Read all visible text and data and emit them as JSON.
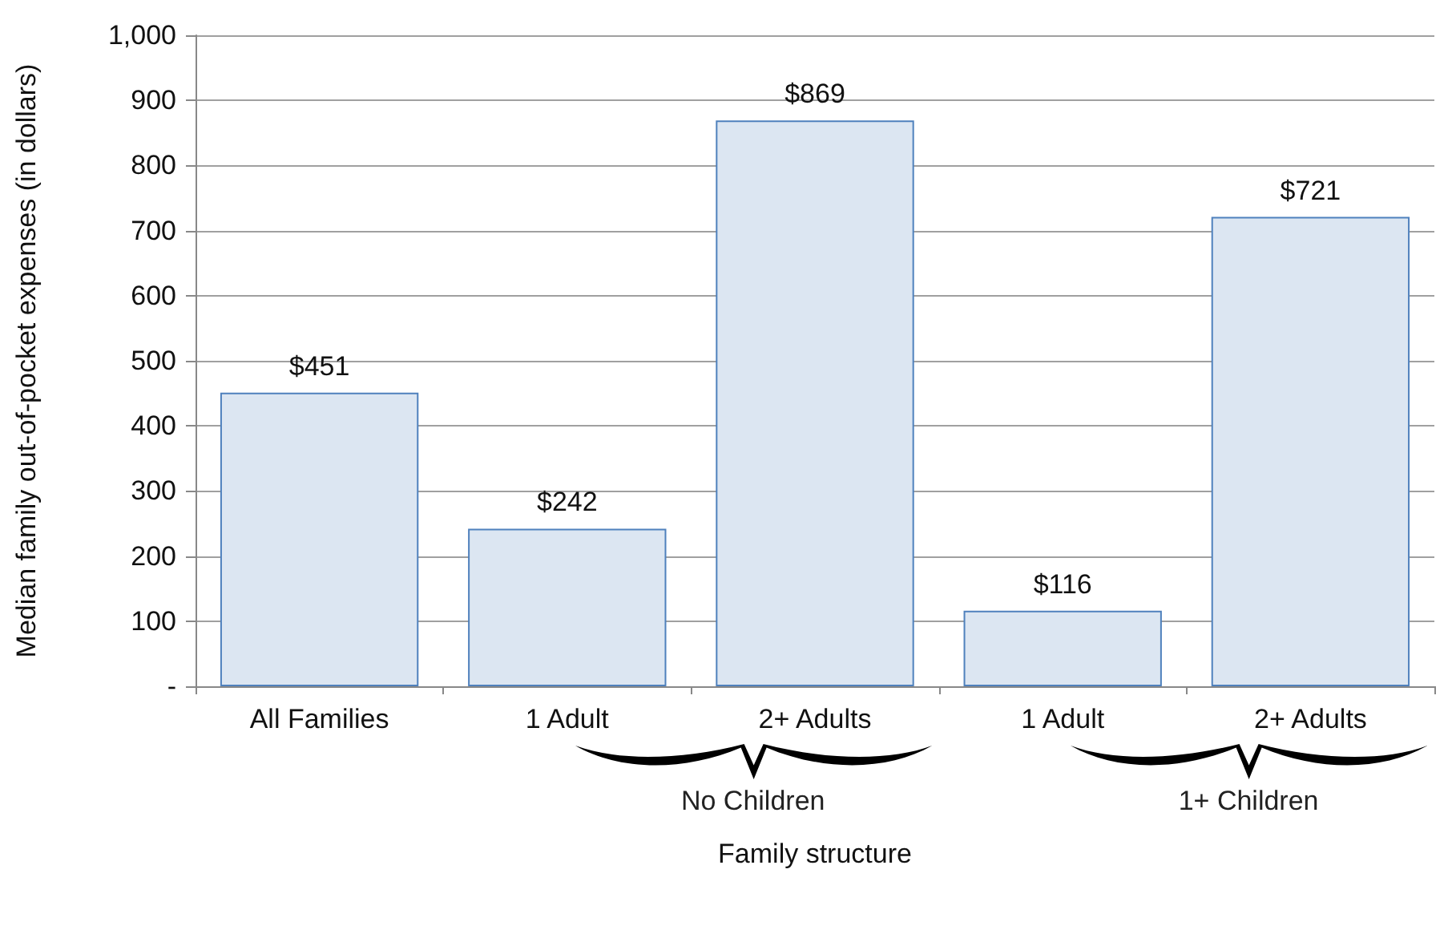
{
  "chart_data": {
    "type": "bar",
    "xlabel": "Family structure",
    "ylabel": "Median family out-of-pocket expenses (in dollars)",
    "categories": [
      "All Families",
      "1 Adult",
      "2+ Adults",
      "1 Adult",
      "2+ Adults"
    ],
    "values": [
      451,
      242,
      869,
      116,
      721
    ],
    "value_labels": [
      "$451",
      "$242",
      "$869",
      "$116",
      "$721"
    ],
    "color": "#dce6f2",
    "ylim": [
      0,
      1000
    ],
    "yticks": [
      {
        "value": 0,
        "label": "-"
      },
      100,
      200,
      300,
      400,
      500,
      600,
      700,
      800,
      900,
      {
        "value": 1000,
        "label": "1,000"
      }
    ],
    "grid": "y",
    "annotations": [
      "No Children",
      "1+ Children"
    ]
  }
}
